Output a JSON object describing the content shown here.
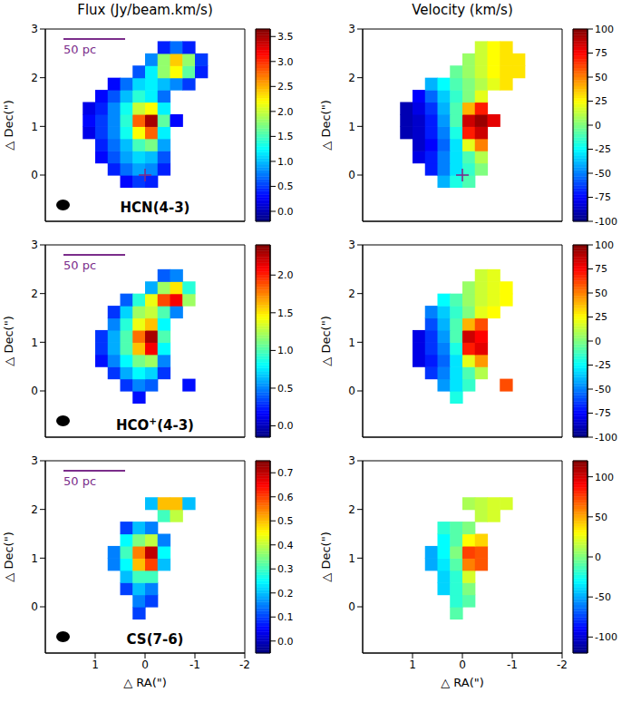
{
  "chart_data": [
    {
      "type": "heatmap",
      "title": "Flux (Jy/beam.km/s)",
      "annotation": "HCN(4-3)",
      "scale_bar": "50 pc",
      "ylabel": "△ Dec(\")",
      "xlim": [
        2,
        -2
      ],
      "ylim": [
        -0.95,
        3
      ],
      "xticks": [
        1,
        0,
        -1,
        -2
      ],
      "yticks": [
        0,
        1,
        2,
        3
      ],
      "tick_labels": "y",
      "x": [
        1.125,
        0.875,
        0.625,
        0.375,
        0.125,
        -0.125,
        -0.375,
        -0.625,
        -0.875,
        -1.125
      ],
      "y": [
        -0.125,
        0.125,
        0.375,
        0.625,
        0.875,
        1.125,
        1.375,
        1.625,
        1.875,
        2.125,
        2.375,
        2.625
      ],
      "cells": [
        [
          null,
          null,
          null,
          0.3,
          0.5,
          0.4,
          null,
          null,
          null,
          null
        ],
        [
          null,
          null,
          0.4,
          0.7,
          0.9,
          0.8,
          0.4,
          null,
          null,
          null
        ],
        [
          null,
          0.3,
          0.6,
          0.9,
          1.1,
          1.0,
          0.6,
          null,
          null,
          null
        ],
        [
          null,
          0.4,
          0.7,
          1.0,
          1.5,
          1.7,
          0.9,
          null,
          null,
          null
        ],
        [
          0.2,
          0.5,
          0.8,
          1.3,
          2.2,
          2.8,
          1.2,
          null,
          null,
          null
        ],
        [
          0.3,
          0.5,
          0.8,
          1.4,
          2.8,
          3.5,
          1.6,
          0.3,
          null,
          null
        ],
        [
          0.2,
          0.4,
          0.8,
          1.3,
          2.0,
          2.2,
          1.2,
          null,
          null,
          null
        ],
        [
          null,
          0.3,
          0.6,
          1.0,
          1.4,
          1.2,
          0.7,
          null,
          null,
          null
        ],
        [
          null,
          null,
          0.3,
          0.7,
          1.1,
          1.2,
          1.0,
          0.8,
          0.5,
          null
        ],
        [
          null,
          null,
          null,
          null,
          0.6,
          1.2,
          1.8,
          2.2,
          1.6,
          0.4
        ],
        [
          null,
          null,
          null,
          null,
          null,
          0.8,
          1.8,
          2.4,
          1.8,
          0.5
        ],
        [
          null,
          null,
          null,
          null,
          null,
          null,
          0.4,
          0.7,
          0.4,
          null
        ]
      ],
      "colorbar": {
        "range": [
          -0.2,
          3.65
        ],
        "ticks": [
          {
            "value": 0,
            "label": "0.0"
          },
          0.5,
          {
            "value": 1,
            "label": "1.0"
          },
          1.5,
          {
            "value": 2,
            "label": "2.0"
          },
          2.5,
          {
            "value": 3,
            "label": "3.0"
          },
          3.5
        ]
      },
      "cross": {
        "x": 0,
        "y": 0,
        "color": "#7b2d8b",
        "marker": "cross"
      }
    },
    {
      "type": "heatmap",
      "title": "Velocity (km/s)",
      "ylabel": "△ Dec(\")",
      "xlim": [
        2,
        -2
      ],
      "ylim": [
        -0.95,
        3
      ],
      "xticks": [
        1,
        0,
        -1,
        -2
      ],
      "yticks": [
        0,
        1,
        2,
        3
      ],
      "tick_labels": "y",
      "x": [
        1.125,
        0.875,
        0.625,
        0.375,
        0.125,
        -0.125,
        -0.375,
        -0.625,
        -0.875,
        -1.125
      ],
      "y": [
        -0.125,
        0.125,
        0.375,
        0.625,
        0.875,
        1.125,
        1.375,
        1.625,
        1.875,
        2.125,
        2.375,
        2.625
      ],
      "cells": [
        [
          null,
          null,
          null,
          -40,
          -20,
          -10,
          null,
          null,
          null,
          null
        ],
        [
          null,
          null,
          -70,
          -50,
          -30,
          -15,
          0,
          null,
          null,
          null
        ],
        [
          null,
          -80,
          -70,
          -50,
          -30,
          -10,
          10,
          null,
          null,
          null
        ],
        [
          null,
          -85,
          -75,
          -55,
          -30,
          20,
          50,
          null,
          null,
          null
        ],
        [
          -90,
          -85,
          -70,
          -50,
          -20,
          70,
          85,
          null,
          null,
          null
        ],
        [
          -90,
          -85,
          -70,
          -45,
          -10,
          85,
          95,
          80,
          null,
          null
        ],
        [
          -90,
          -80,
          -65,
          -40,
          -10,
          40,
          70,
          null,
          null,
          null
        ],
        [
          null,
          -75,
          -55,
          -35,
          -15,
          0,
          20,
          null,
          null,
          null
        ],
        [
          null,
          null,
          -40,
          -25,
          -10,
          0,
          10,
          20,
          30,
          null
        ],
        [
          null,
          null,
          null,
          null,
          -5,
          5,
          15,
          25,
          30,
          30
        ],
        [
          null,
          null,
          null,
          null,
          null,
          5,
          15,
          25,
          30,
          30
        ],
        [
          null,
          null,
          null,
          null,
          null,
          null,
          15,
          25,
          30,
          null
        ]
      ],
      "colorbar": {
        "range": [
          -100,
          100
        ],
        "ticks": [
          -100,
          -75,
          -50,
          -25,
          0,
          25,
          50,
          75,
          100
        ]
      },
      "cross": {
        "x": 0,
        "y": 0,
        "color": "#7b2d8b",
        "marker": "cross"
      }
    },
    {
      "type": "heatmap",
      "annotation": "HCO+(4-3)",
      "scale_bar": "50 pc",
      "ylabel": "△ Dec(\")",
      "xlim": [
        2,
        -2
      ],
      "ylim": [
        -0.95,
        3
      ],
      "xticks": [
        1,
        0,
        -1,
        -2
      ],
      "yticks": [
        0,
        1,
        2,
        3
      ],
      "tick_labels": "y",
      "x": [
        1.125,
        0.875,
        0.625,
        0.375,
        0.125,
        -0.125,
        -0.375,
        -0.625,
        -0.875,
        -1.125
      ],
      "y": [
        -0.125,
        0.125,
        0.375,
        0.625,
        0.875,
        1.125,
        1.375,
        1.625,
        1.875,
        2.125,
        2.375,
        2.625
      ],
      "cells": [
        [
          null,
          null,
          null,
          null,
          0.2,
          null,
          null,
          null,
          null,
          null
        ],
        [
          null,
          null,
          null,
          0.3,
          0.5,
          0.4,
          null,
          null,
          0.2,
          null
        ],
        [
          null,
          null,
          0.3,
          0.6,
          0.8,
          0.7,
          0.3,
          null,
          null,
          null
        ],
        [
          null,
          0.2,
          0.5,
          0.8,
          1.1,
          1.2,
          0.5,
          null,
          null,
          null
        ],
        [
          null,
          0.3,
          0.6,
          1.0,
          1.6,
          2.1,
          0.8,
          null,
          null,
          null
        ],
        [
          null,
          0.3,
          0.6,
          1.0,
          1.8,
          2.3,
          1.0,
          null,
          null,
          null
        ],
        [
          null,
          null,
          0.5,
          0.9,
          1.4,
          1.6,
          0.8,
          null,
          null,
          null
        ],
        [
          null,
          null,
          0.3,
          0.7,
          1.2,
          1.3,
          1.0,
          0.5,
          null,
          null
        ],
        [
          null,
          null,
          null,
          0.4,
          0.9,
          1.4,
          1.9,
          2.1,
          1.2,
          null
        ],
        [
          null,
          null,
          null,
          null,
          null,
          0.6,
          1.2,
          1.5,
          0.9,
          null
        ],
        [
          null,
          null,
          null,
          null,
          null,
          null,
          0.4,
          0.5,
          null,
          null
        ],
        [
          null,
          null,
          null,
          null,
          null,
          null,
          null,
          null,
          null,
          null
        ]
      ],
      "colorbar": {
        "range": [
          -0.15,
          2.4
        ],
        "ticks": [
          {
            "value": 0,
            "label": "0.0"
          },
          0.5,
          {
            "value": 1,
            "label": "1.0"
          },
          1.5,
          {
            "value": 2,
            "label": "2.0"
          }
        ]
      }
    },
    {
      "type": "heatmap",
      "ylabel": "△ Dec(\")",
      "xlim": [
        2,
        -2
      ],
      "ylim": [
        -0.95,
        3
      ],
      "xticks": [
        1,
        0,
        -1,
        -2
      ],
      "yticks": [
        0,
        1,
        2,
        3
      ],
      "tick_labels": "y",
      "x": [
        1.125,
        0.875,
        0.625,
        0.375,
        0.125,
        -0.125,
        -0.375,
        -0.625,
        -0.875,
        -1.125
      ],
      "y": [
        -0.125,
        0.125,
        0.375,
        0.625,
        0.875,
        1.125,
        1.375,
        1.625,
        1.875,
        2.125,
        2.375,
        2.625
      ],
      "cells": [
        [
          null,
          null,
          null,
          null,
          -20,
          null,
          null,
          null,
          null,
          null
        ],
        [
          null,
          null,
          null,
          -45,
          -30,
          -15,
          null,
          null,
          60,
          null
        ],
        [
          null,
          null,
          -65,
          -50,
          -30,
          -10,
          10,
          null,
          null,
          null
        ],
        [
          null,
          -80,
          -70,
          -55,
          -30,
          20,
          45,
          null,
          null,
          null
        ],
        [
          null,
          -80,
          -65,
          -50,
          -20,
          70,
          80,
          null,
          null,
          null
        ],
        [
          null,
          -80,
          -65,
          -45,
          -10,
          85,
          75,
          null,
          null,
          null
        ],
        [
          null,
          null,
          -60,
          -40,
          -10,
          40,
          60,
          null,
          null,
          null
        ],
        [
          null,
          null,
          -50,
          -35,
          -15,
          0,
          20,
          25,
          null,
          null
        ],
        [
          null,
          null,
          null,
          -25,
          -10,
          5,
          15,
          20,
          25,
          null
        ],
        [
          null,
          null,
          null,
          null,
          null,
          5,
          15,
          20,
          25,
          null
        ],
        [
          null,
          null,
          null,
          null,
          null,
          null,
          15,
          20,
          null,
          null
        ],
        [
          null,
          null,
          null,
          null,
          null,
          null,
          null,
          null,
          null,
          null
        ]
      ],
      "colorbar": {
        "range": [
          -100,
          100
        ],
        "ticks": [
          -100,
          -75,
          -50,
          -25,
          0,
          25,
          50,
          75,
          100
        ]
      }
    },
    {
      "type": "heatmap",
      "annotation": "CS(7-6)",
      "scale_bar": "50 pc",
      "xlabel": "△ RA(\")",
      "ylabel": "△ Dec(\")",
      "xlim": [
        2,
        -2
      ],
      "ylim": [
        -0.95,
        3
      ],
      "xticks": [
        1,
        0,
        -1,
        -2
      ],
      "yticks": [
        0,
        1,
        2,
        3
      ],
      "x": [
        1.125,
        0.875,
        0.625,
        0.375,
        0.125,
        -0.125,
        -0.375,
        -0.625,
        -0.875,
        -1.125
      ],
      "y": [
        -0.125,
        0.125,
        0.375,
        0.625,
        0.875,
        1.125,
        1.375,
        1.625,
        1.875,
        2.125,
        2.375,
        2.625
      ],
      "cells": [
        [
          null,
          null,
          null,
          null,
          0.1,
          null,
          null,
          null,
          null,
          null
        ],
        [
          null,
          null,
          null,
          null,
          0.15,
          0.1,
          null,
          null,
          null,
          null
        ],
        [
          null,
          null,
          null,
          0.1,
          0.2,
          0.15,
          null,
          null,
          null,
          null
        ],
        [
          null,
          null,
          null,
          0.2,
          0.3,
          0.3,
          null,
          null,
          null,
          null
        ],
        [
          null,
          null,
          0.15,
          0.25,
          0.5,
          0.6,
          0.2,
          null,
          null,
          null
        ],
        [
          null,
          null,
          0.15,
          0.3,
          0.55,
          0.7,
          0.25,
          null,
          null,
          null
        ],
        [
          null,
          null,
          null,
          0.25,
          0.35,
          0.4,
          0.15,
          null,
          null,
          null
        ],
        [
          null,
          null,
          null,
          0.1,
          0.2,
          0.15,
          null,
          null,
          null,
          null
        ],
        [
          null,
          null,
          null,
          null,
          null,
          null,
          0.3,
          0.4,
          null,
          null
        ],
        [
          null,
          null,
          null,
          null,
          null,
          0.2,
          0.5,
          0.5,
          0.2,
          null
        ],
        [
          null,
          null,
          null,
          null,
          null,
          null,
          null,
          null,
          null,
          null
        ],
        [
          null,
          null,
          null,
          null,
          null,
          null,
          null,
          null,
          null,
          null
        ]
      ],
      "colorbar": {
        "range": [
          -0.05,
          0.75
        ],
        "ticks": [
          {
            "value": 0,
            "label": "0.0"
          },
          0.1,
          0.2,
          0.3,
          0.4,
          0.5,
          0.6,
          0.7
        ]
      }
    },
    {
      "type": "heatmap",
      "xlabel": "△ RA(\")",
      "ylabel": "△ Dec(\")",
      "xlim": [
        2,
        -2
      ],
      "ylim": [
        -0.95,
        3
      ],
      "xticks": [
        1,
        0,
        -1,
        -2
      ],
      "yticks": [
        0,
        1,
        2,
        3
      ],
      "x": [
        1.125,
        0.875,
        0.625,
        0.375,
        0.125,
        -0.125,
        -0.375,
        -0.625,
        -0.875,
        -1.125
      ],
      "y": [
        -0.125,
        0.125,
        0.375,
        0.625,
        0.875,
        1.125,
        1.375,
        1.625,
        1.875,
        2.125,
        2.375,
        2.625
      ],
      "cells": [
        [
          null,
          null,
          null,
          null,
          -10,
          null,
          null,
          null,
          null,
          null
        ],
        [
          null,
          null,
          null,
          null,
          -20,
          -10,
          null,
          null,
          null,
          null
        ],
        [
          null,
          null,
          null,
          -40,
          -20,
          0,
          null,
          null,
          null,
          null
        ],
        [
          null,
          null,
          null,
          -40,
          -20,
          20,
          null,
          null,
          null,
          null
        ],
        [
          null,
          null,
          -50,
          -35,
          -10,
          60,
          70,
          null,
          null,
          null
        ],
        [
          null,
          null,
          -50,
          -30,
          0,
          75,
          70,
          null,
          null,
          null
        ],
        [
          null,
          null,
          null,
          -30,
          -10,
          30,
          40,
          null,
          null,
          null
        ],
        [
          null,
          null,
          null,
          -20,
          -10,
          0,
          null,
          null,
          null,
          null
        ],
        [
          null,
          null,
          null,
          null,
          null,
          null,
          15,
          20,
          null,
          null
        ],
        [
          null,
          null,
          null,
          null,
          null,
          10,
          15,
          20,
          20,
          null
        ],
        [
          null,
          null,
          null,
          null,
          null,
          null,
          null,
          null,
          null,
          null
        ],
        [
          null,
          null,
          null,
          null,
          null,
          null,
          null,
          null,
          null,
          null
        ]
      ],
      "colorbar": {
        "range": [
          -120,
          120
        ],
        "ticks": [
          -100,
          -50,
          0,
          50,
          100
        ]
      }
    }
  ]
}
